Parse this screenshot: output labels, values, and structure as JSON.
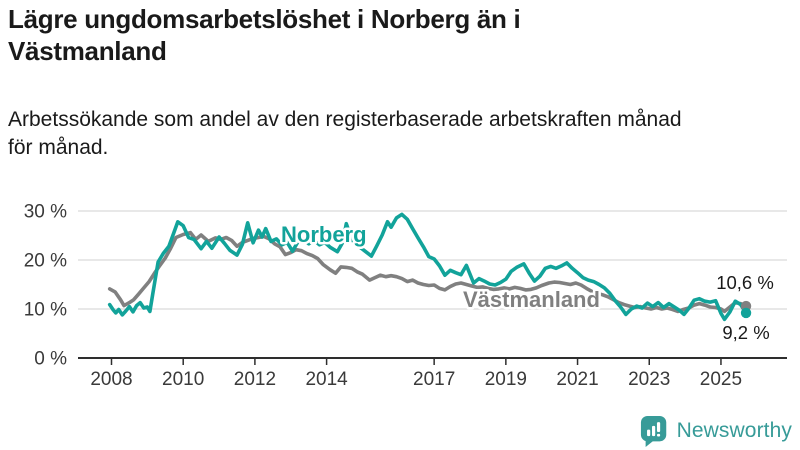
{
  "header": {
    "title_lines": [
      "Lägre ungdomsarbetslöshet i Norberg än i",
      "Västmanland"
    ],
    "subtitle_lines": [
      "Arbetssökande som andel av den registerbaserade arbetskraften månad",
      "för månad."
    ]
  },
  "footer": {
    "brand": "Newsworthy"
  },
  "colors": {
    "norberg": "#12a39a",
    "vastmanland": "#808080",
    "grid": "#d9d9d9",
    "axis": "#2e2e2e",
    "axis_text": "#3a3a3a",
    "value_text": "#1a1a1a",
    "brand": "#379b98",
    "background": "#ffffff"
  },
  "chart_data": {
    "type": "line",
    "title": "Lägre ungdomsarbetslöshet i Norberg än i Västmanland",
    "subtitle": "Arbetssökande som andel av den registerbaserade arbetskraften månad för månad.",
    "xlabel": "",
    "ylabel": "",
    "unit": "%",
    "grid": "horizontal",
    "legend_position": "inline-labels",
    "xlim": [
      2007.8,
      2026.2
    ],
    "ylim": [
      0,
      32
    ],
    "yticks": [
      0,
      10,
      20,
      30
    ],
    "ytick_labels": [
      "0 %",
      "10 %",
      "20 %",
      "30 %"
    ],
    "xticks": [
      2008,
      2010,
      2012,
      2014,
      2017,
      2019,
      2021,
      2023,
      2025
    ],
    "series": [
      {
        "name": "Norberg",
        "color": "#12a39a",
        "latest_value": 9.2,
        "end_label": "9,2 %",
        "points": [
          [
            2007.95,
            10.9
          ],
          [
            2008.05,
            9.8
          ],
          [
            2008.12,
            9.2
          ],
          [
            2008.2,
            9.9
          ],
          [
            2008.3,
            8.8
          ],
          [
            2008.4,
            9.6
          ],
          [
            2008.5,
            10.5
          ],
          [
            2008.6,
            9.4
          ],
          [
            2008.7,
            10.7
          ],
          [
            2008.8,
            11.3
          ],
          [
            2008.9,
            10.2
          ],
          [
            2009.0,
            10.4
          ],
          [
            2009.07,
            9.5
          ],
          [
            2009.15,
            13.0
          ],
          [
            2009.3,
            19.6
          ],
          [
            2009.45,
            21.4
          ],
          [
            2009.6,
            22.8
          ],
          [
            2009.72,
            25.2
          ],
          [
            2009.85,
            27.8
          ],
          [
            2010.0,
            27.0
          ],
          [
            2010.15,
            24.6
          ],
          [
            2010.3,
            24.2
          ],
          [
            2010.5,
            22.3
          ],
          [
            2010.65,
            23.8
          ],
          [
            2010.8,
            22.4
          ],
          [
            2011.0,
            24.7
          ],
          [
            2011.15,
            23.4
          ],
          [
            2011.3,
            22.0
          ],
          [
            2011.5,
            21.0
          ],
          [
            2011.65,
            23.2
          ],
          [
            2011.8,
            27.6
          ],
          [
            2011.95,
            23.5
          ],
          [
            2012.1,
            26.1
          ],
          [
            2012.2,
            24.7
          ],
          [
            2012.3,
            26.4
          ],
          [
            2012.45,
            23.8
          ],
          [
            2012.6,
            24.3
          ],
          [
            2012.75,
            23.1
          ],
          [
            2012.9,
            23.6
          ],
          [
            2013.05,
            21.8
          ],
          [
            2013.2,
            23.7
          ],
          [
            2013.35,
            24.3
          ],
          [
            2013.5,
            23.3
          ],
          [
            2013.65,
            24.0
          ],
          [
            2013.8,
            23.1
          ],
          [
            2013.95,
            23.6
          ],
          [
            2014.1,
            22.6
          ],
          [
            2014.3,
            21.7
          ],
          [
            2014.45,
            23.6
          ],
          [
            2014.55,
            27.4
          ],
          [
            2014.7,
            24.2
          ],
          [
            2014.85,
            23.0
          ],
          [
            2015.0,
            22.2
          ],
          [
            2015.25,
            20.8
          ],
          [
            2015.4,
            22.9
          ],
          [
            2015.55,
            25.1
          ],
          [
            2015.7,
            27.8
          ],
          [
            2015.8,
            26.7
          ],
          [
            2015.95,
            28.6
          ],
          [
            2016.1,
            29.3
          ],
          [
            2016.25,
            28.3
          ],
          [
            2016.4,
            26.4
          ],
          [
            2016.55,
            24.5
          ],
          [
            2016.7,
            22.7
          ],
          [
            2016.85,
            20.7
          ],
          [
            2017.0,
            20.2
          ],
          [
            2017.15,
            18.8
          ],
          [
            2017.3,
            16.9
          ],
          [
            2017.45,
            17.9
          ],
          [
            2017.6,
            17.4
          ],
          [
            2017.75,
            17.0
          ],
          [
            2017.9,
            18.9
          ],
          [
            2018.0,
            17.1
          ],
          [
            2018.1,
            15.3
          ],
          [
            2018.25,
            16.2
          ],
          [
            2018.4,
            15.7
          ],
          [
            2018.55,
            15.1
          ],
          [
            2018.7,
            14.9
          ],
          [
            2018.85,
            15.4
          ],
          [
            2019.0,
            16.1
          ],
          [
            2019.15,
            17.7
          ],
          [
            2019.3,
            18.5
          ],
          [
            2019.5,
            19.2
          ],
          [
            2019.65,
            17.3
          ],
          [
            2019.8,
            15.7
          ],
          [
            2019.95,
            16.7
          ],
          [
            2020.1,
            18.3
          ],
          [
            2020.25,
            18.7
          ],
          [
            2020.4,
            18.3
          ],
          [
            2020.55,
            18.8
          ],
          [
            2020.7,
            19.4
          ],
          [
            2020.85,
            18.3
          ],
          [
            2021.0,
            17.4
          ],
          [
            2021.15,
            16.4
          ],
          [
            2021.3,
            15.9
          ],
          [
            2021.45,
            15.6
          ],
          [
            2021.6,
            15.0
          ],
          [
            2021.75,
            14.3
          ],
          [
            2021.9,
            13.2
          ],
          [
            2022.05,
            11.7
          ],
          [
            2022.2,
            10.4
          ],
          [
            2022.35,
            8.9
          ],
          [
            2022.5,
            10.0
          ],
          [
            2022.65,
            10.6
          ],
          [
            2022.8,
            10.2
          ],
          [
            2022.95,
            11.2
          ],
          [
            2023.1,
            10.5
          ],
          [
            2023.25,
            11.3
          ],
          [
            2023.4,
            10.3
          ],
          [
            2023.55,
            11.1
          ],
          [
            2023.7,
            10.4
          ],
          [
            2023.85,
            9.7
          ],
          [
            2023.97,
            8.9
          ],
          [
            2024.1,
            10.1
          ],
          [
            2024.25,
            11.8
          ],
          [
            2024.4,
            12.1
          ],
          [
            2024.55,
            11.6
          ],
          [
            2024.7,
            11.4
          ],
          [
            2024.85,
            11.7
          ],
          [
            2025.0,
            9.1
          ],
          [
            2025.1,
            7.9
          ],
          [
            2025.25,
            9.4
          ],
          [
            2025.4,
            11.6
          ],
          [
            2025.55,
            10.9
          ],
          [
            2025.7,
            9.2
          ]
        ]
      },
      {
        "name": "Västmanland",
        "color": "#808080",
        "latest_value": 10.6,
        "end_label": "10,6 %",
        "points": [
          [
            2007.95,
            14.1
          ],
          [
            2008.1,
            13.5
          ],
          [
            2008.25,
            11.9
          ],
          [
            2008.35,
            10.7
          ],
          [
            2008.5,
            11.3
          ],
          [
            2008.62,
            11.9
          ],
          [
            2008.75,
            13.0
          ],
          [
            2008.9,
            14.3
          ],
          [
            2009.05,
            15.6
          ],
          [
            2009.2,
            17.3
          ],
          [
            2009.35,
            18.9
          ],
          [
            2009.5,
            20.4
          ],
          [
            2009.65,
            22.4
          ],
          [
            2009.8,
            24.6
          ],
          [
            2010.0,
            25.2
          ],
          [
            2010.2,
            25.6
          ],
          [
            2010.35,
            24.2
          ],
          [
            2010.5,
            25.1
          ],
          [
            2010.7,
            23.8
          ],
          [
            2010.9,
            24.5
          ],
          [
            2011.05,
            24.2
          ],
          [
            2011.2,
            24.6
          ],
          [
            2011.35,
            24.0
          ],
          [
            2011.5,
            22.8
          ],
          [
            2011.65,
            23.6
          ],
          [
            2011.8,
            24.0
          ],
          [
            2011.95,
            24.4
          ],
          [
            2012.1,
            24.6
          ],
          [
            2012.25,
            24.8
          ],
          [
            2012.4,
            24.3
          ],
          [
            2012.55,
            23.3
          ],
          [
            2012.7,
            22.7
          ],
          [
            2012.85,
            21.1
          ],
          [
            2013.0,
            21.5
          ],
          [
            2013.15,
            22.1
          ],
          [
            2013.3,
            21.9
          ],
          [
            2013.45,
            21.3
          ],
          [
            2013.6,
            20.9
          ],
          [
            2013.75,
            20.3
          ],
          [
            2013.9,
            19.1
          ],
          [
            2014.1,
            18.0
          ],
          [
            2014.25,
            17.3
          ],
          [
            2014.4,
            18.6
          ],
          [
            2014.55,
            18.5
          ],
          [
            2014.7,
            18.3
          ],
          [
            2014.85,
            17.6
          ],
          [
            2015.0,
            17.1
          ],
          [
            2015.2,
            15.9
          ],
          [
            2015.35,
            16.4
          ],
          [
            2015.5,
            16.9
          ],
          [
            2015.65,
            16.6
          ],
          [
            2015.8,
            16.8
          ],
          [
            2015.95,
            16.6
          ],
          [
            2016.1,
            16.2
          ],
          [
            2016.25,
            15.6
          ],
          [
            2016.4,
            15.9
          ],
          [
            2016.55,
            15.3
          ],
          [
            2016.7,
            15.0
          ],
          [
            2016.85,
            14.8
          ],
          [
            2017.0,
            14.9
          ],
          [
            2017.15,
            14.2
          ],
          [
            2017.3,
            13.9
          ],
          [
            2017.45,
            14.6
          ],
          [
            2017.6,
            15.1
          ],
          [
            2017.75,
            15.3
          ],
          [
            2017.9,
            15.0
          ],
          [
            2018.05,
            14.7
          ],
          [
            2018.2,
            14.4
          ],
          [
            2018.35,
            14.5
          ],
          [
            2018.5,
            14.2
          ],
          [
            2018.65,
            14.0
          ],
          [
            2018.8,
            14.1
          ],
          [
            2018.95,
            14.3
          ],
          [
            2019.1,
            14.1
          ],
          [
            2019.25,
            14.4
          ],
          [
            2019.4,
            14.2
          ],
          [
            2019.55,
            13.9
          ],
          [
            2019.7,
            14.0
          ],
          [
            2019.85,
            14.3
          ],
          [
            2020.0,
            14.8
          ],
          [
            2020.2,
            15.3
          ],
          [
            2020.35,
            15.5
          ],
          [
            2020.5,
            15.4
          ],
          [
            2020.65,
            15.2
          ],
          [
            2020.8,
            15.0
          ],
          [
            2020.95,
            15.3
          ],
          [
            2021.1,
            14.9
          ],
          [
            2021.25,
            14.2
          ],
          [
            2021.4,
            13.6
          ],
          [
            2021.55,
            13.2
          ],
          [
            2021.7,
            12.9
          ],
          [
            2021.85,
            12.5
          ],
          [
            2022.0,
            11.9
          ],
          [
            2022.15,
            11.3
          ],
          [
            2022.3,
            10.9
          ],
          [
            2022.45,
            10.6
          ],
          [
            2022.6,
            10.3
          ],
          [
            2022.75,
            10.5
          ],
          [
            2022.9,
            10.2
          ],
          [
            2023.05,
            10.0
          ],
          [
            2023.2,
            10.3
          ],
          [
            2023.35,
            10.0
          ],
          [
            2023.5,
            10.2
          ],
          [
            2023.65,
            9.9
          ],
          [
            2023.8,
            9.5
          ],
          [
            2023.95,
            9.9
          ],
          [
            2024.1,
            10.2
          ],
          [
            2024.25,
            10.8
          ],
          [
            2024.4,
            11.1
          ],
          [
            2024.55,
            10.8
          ],
          [
            2024.7,
            10.4
          ],
          [
            2024.85,
            10.3
          ],
          [
            2025.0,
            10.0
          ],
          [
            2025.1,
            9.5
          ],
          [
            2025.25,
            10.4
          ],
          [
            2025.4,
            11.3
          ],
          [
            2025.55,
            11.1
          ],
          [
            2025.7,
            10.6
          ]
        ]
      }
    ]
  }
}
